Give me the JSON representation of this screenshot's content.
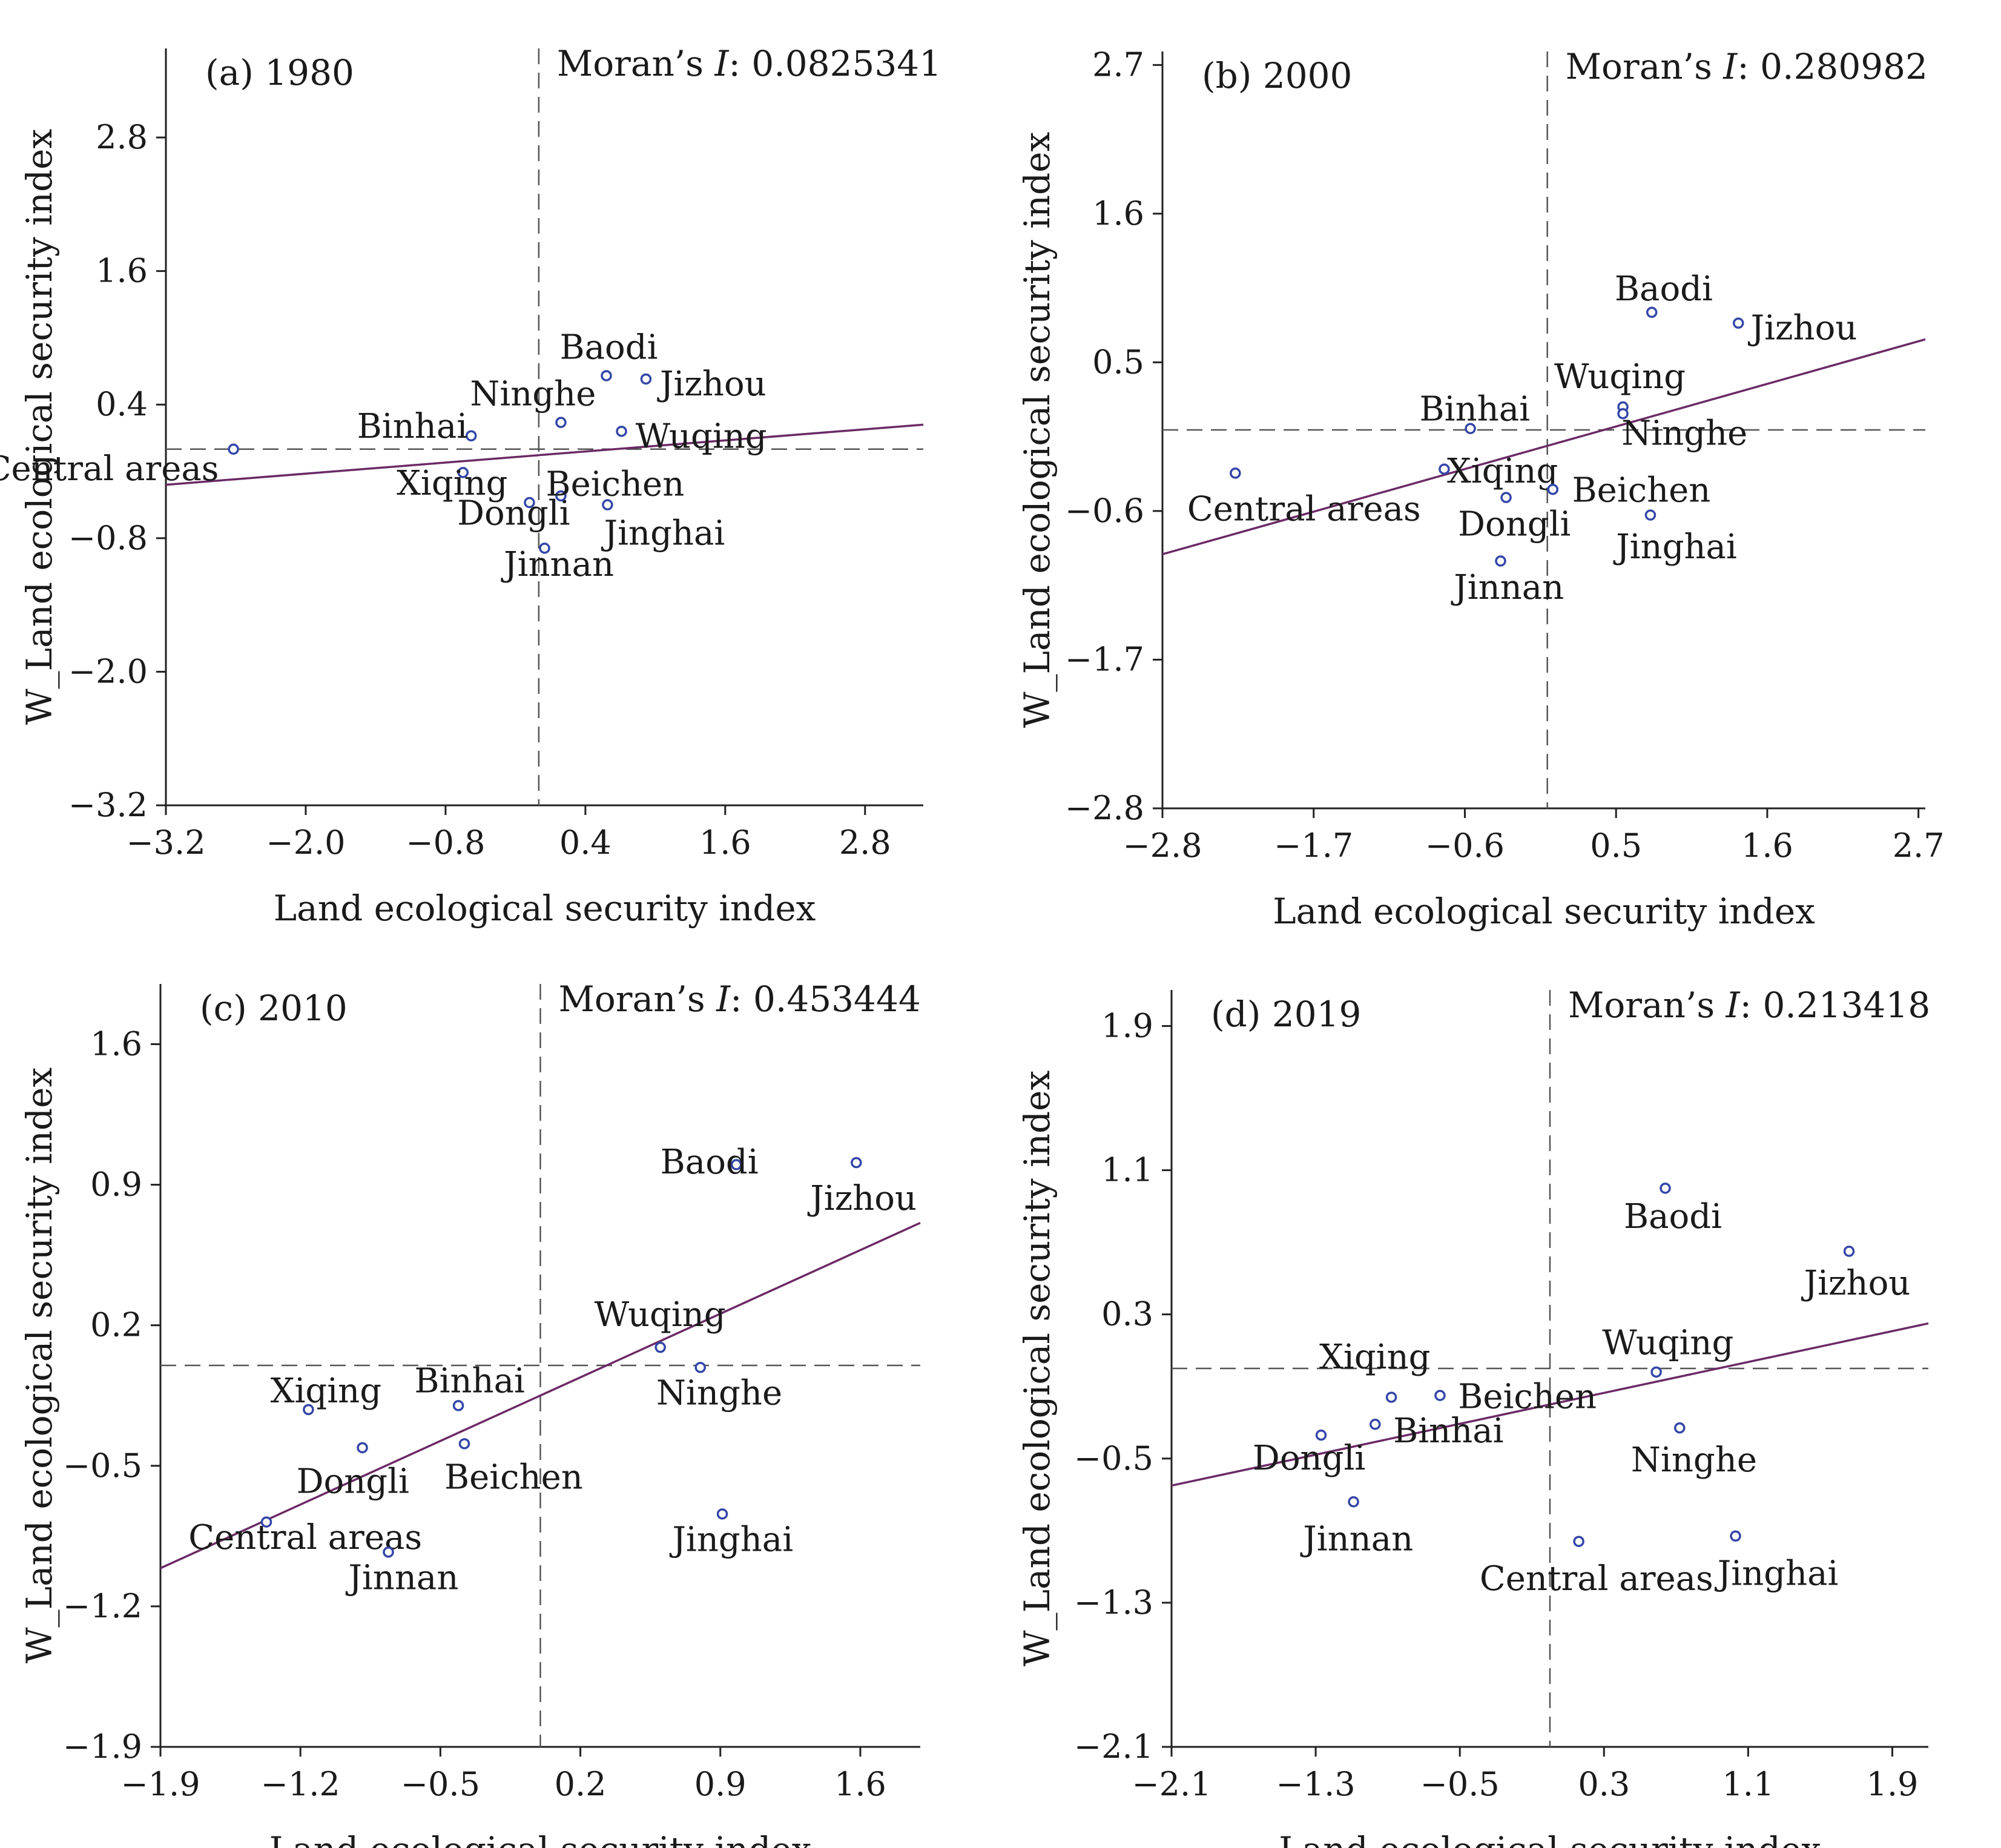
{
  "figure": {
    "colors": {
      "points": "#3346a8",
      "regression_line": "#6b2a66",
      "reference_lines": "#555555",
      "axes": "#222222"
    }
  },
  "chart_data": [
    {
      "type": "scatter",
      "panel_label": "(a) 1980",
      "moran_prefix": "Moran’s ",
      "moran_symbol": "I",
      "moran_value": ": 0.0825341",
      "xlabel": "Land ecological security index",
      "ylabel": "W_Land ecological security index",
      "xlim": [
        -3.2,
        3.3
      ],
      "ylim": [
        -3.2,
        3.6
      ],
      "xticks": [
        "−3.2",
        "−2.0",
        "−0.8",
        "0.4",
        "1.6",
        "2.8"
      ],
      "xtick_values": [
        -3.2,
        -2.0,
        -0.8,
        0.4,
        1.6,
        2.8
      ],
      "yticks": [
        "2.8",
        "1.6",
        "0.4",
        "−0.8",
        "−2.0",
        "−3.2"
      ],
      "ytick_values": [
        2.8,
        1.6,
        0.4,
        -0.8,
        -2.0,
        -3.2
      ],
      "fit_line": {
        "x": [
          -3.2,
          3.3
        ],
        "y": [
          -0.32,
          0.22
        ]
      },
      "reference_lines": {
        "x": 0.0,
        "y": 0.0
      },
      "points": [
        {
          "name": "Central areas",
          "x": -2.62,
          "y": 0.0,
          "label_dx": -2.13,
          "label_dy": -0.18
        },
        {
          "name": "Binhai",
          "x": -0.58,
          "y": 0.12,
          "label_dx": -0.98,
          "label_dy": 0.08
        },
        {
          "name": "Xiqing",
          "x": -0.65,
          "y": -0.21,
          "label_dx": -0.57,
          "label_dy": -0.1
        },
        {
          "name": "Dongli",
          "x": -0.08,
          "y": -0.48,
          "label_dx": -0.62,
          "label_dy": -0.1
        },
        {
          "name": "Jinnan",
          "x": 0.05,
          "y": -0.89,
          "label_dx": -0.35,
          "label_dy": -0.15
        },
        {
          "name": "Ninghe",
          "x": 0.19,
          "y": 0.24,
          "label_dx": -0.78,
          "label_dy": 0.25
        },
        {
          "name": "Baodi",
          "x": 0.58,
          "y": 0.66,
          "label_dx": -0.4,
          "label_dy": 0.25
        },
        {
          "name": "Jizhou",
          "x": 0.92,
          "y": 0.63,
          "label_dx": 0.12,
          "label_dy": -0.05
        },
        {
          "name": "Wuqing",
          "x": 0.71,
          "y": 0.16,
          "label_dx": 0.12,
          "label_dy": -0.05
        },
        {
          "name": "Beichen",
          "x": 0.19,
          "y": -0.42,
          "label_dx": -0.13,
          "label_dy": 0.1
        },
        {
          "name": "Jinghai",
          "x": 0.59,
          "y": -0.5,
          "label_dx": -0.03,
          "label_dy": -0.26
        }
      ]
    },
    {
      "type": "scatter",
      "panel_label": "(b) 2000",
      "moran_prefix": "Moran’s ",
      "moran_symbol": "I",
      "moran_value": ": 0.280982",
      "xlabel": "Land ecological security index",
      "ylabel": "W_Land ecological security index",
      "xlim": [
        -2.8,
        2.75
      ],
      "ylim": [
        -2.8,
        2.8
      ],
      "xticks": [
        "−2.8",
        "−1.7",
        "−0.6",
        "0.5",
        "1.6",
        "2.7"
      ],
      "xtick_values": [
        -2.8,
        -1.7,
        -0.6,
        0.5,
        1.6,
        2.7
      ],
      "yticks": [
        "2.7",
        "1.6",
        "0.5",
        "−0.6",
        "−1.7",
        "−2.8"
      ],
      "ytick_values": [
        2.7,
        1.6,
        0.5,
        -0.6,
        -1.7,
        -2.8
      ],
      "fit_line": {
        "x": [
          -2.8,
          2.75
        ],
        "y": [
          -0.92,
          0.67
        ]
      },
      "reference_lines": {
        "x": 0.0,
        "y": 0.0
      },
      "points": [
        {
          "name": "Central areas",
          "x": -2.27,
          "y": -0.32,
          "label_dx": -0.35,
          "label_dy": -0.27
        },
        {
          "name": "Binhai",
          "x": -0.56,
          "y": 0.01,
          "label_dx": -0.37,
          "label_dy": 0.14
        },
        {
          "name": "Xiqing",
          "x": -0.75,
          "y": -0.29,
          "label_dx": 0.02,
          "label_dy": -0.02
        },
        {
          "name": "Dongli",
          "x": -0.3,
          "y": -0.5,
          "label_dx": -0.35,
          "label_dy": -0.2
        },
        {
          "name": "Jinnan",
          "x": -0.34,
          "y": -0.97,
          "label_dx": -0.34,
          "label_dy": -0.2
        },
        {
          "name": "Wuqing",
          "x": 0.55,
          "y": 0.17,
          "label_dx": -0.5,
          "label_dy": 0.22
        },
        {
          "name": "Ninghe",
          "x": 0.55,
          "y": 0.12,
          "label_dx": -0.01,
          "label_dy": -0.15
        },
        {
          "name": "Beichen",
          "x": 0.04,
          "y": -0.44,
          "label_dx": 0.14,
          "label_dy": -0.01
        },
        {
          "name": "Jinghai",
          "x": 0.75,
          "y": -0.63,
          "label_dx": -0.25,
          "label_dy": -0.24
        },
        {
          "name": "Baodi",
          "x": 0.76,
          "y": 0.87,
          "label_dx": -0.27,
          "label_dy": 0.17
        },
        {
          "name": "Jizhou",
          "x": 1.39,
          "y": 0.79,
          "label_dx": 0.09,
          "label_dy": -0.04
        }
      ]
    },
    {
      "type": "scatter",
      "panel_label": "(c) 2010",
      "moran_prefix": "Moran’s ",
      "moran_symbol": "I",
      "moran_value": ": 0.453444",
      "xlabel": "Land ecological security index",
      "ylabel": "W_Land ecological security index",
      "xlim": [
        -1.9,
        1.9
      ],
      "ylim": [
        -1.9,
        1.9
      ],
      "xticks": [
        "−1.9",
        "−1.2",
        "−0.5",
        "0.2",
        "0.9",
        "1.6"
      ],
      "xtick_values": [
        -1.9,
        -1.2,
        -0.5,
        0.2,
        0.9,
        1.6
      ],
      "yticks": [
        "1.6",
        "0.9",
        "0.2",
        "−0.5",
        "−1.2",
        "−1.9"
      ],
      "ytick_values": [
        1.6,
        0.9,
        0.2,
        -0.5,
        -1.2,
        -1.9
      ],
      "fit_line": {
        "x": [
          -1.9,
          1.9
        ],
        "y": [
          -1.01,
          0.71
        ]
      },
      "reference_lines": {
        "x": 0.0,
        "y": 0.0
      },
      "points": [
        {
          "name": "Xiqing",
          "x": -1.16,
          "y": -0.22,
          "label_dx": -0.19,
          "label_dy": 0.09
        },
        {
          "name": "Dongli",
          "x": -0.89,
          "y": -0.41,
          "label_dx": -0.33,
          "label_dy": -0.17
        },
        {
          "name": "Central areas",
          "x": -1.37,
          "y": -0.78,
          "label_dx": -0.39,
          "label_dy": -0.08
        },
        {
          "name": "Jinnan",
          "x": -0.76,
          "y": -0.93,
          "label_dx": -0.2,
          "label_dy": -0.13
        },
        {
          "name": "Binhai",
          "x": -0.41,
          "y": -0.2,
          "label_dx": -0.22,
          "label_dy": 0.12
        },
        {
          "name": "Beichen",
          "x": -0.38,
          "y": -0.39,
          "label_dx": -0.1,
          "label_dy": -0.17
        },
        {
          "name": "Wuqing",
          "x": 0.6,
          "y": 0.09,
          "label_dx": -0.33,
          "label_dy": 0.16
        },
        {
          "name": "Ninghe",
          "x": 0.8,
          "y": -0.01,
          "label_dx": -0.22,
          "label_dy": -0.13
        },
        {
          "name": "Jinghai",
          "x": 0.91,
          "y": -0.74,
          "label_dx": -0.25,
          "label_dy": -0.13
        },
        {
          "name": "Baodi",
          "x": 0.98,
          "y": 1.0,
          "label_dx": -0.38,
          "label_dy": 0.01
        },
        {
          "name": "Jizhou",
          "x": 1.58,
          "y": 1.01,
          "label_dx": -0.23,
          "label_dy": -0.18
        }
      ]
    },
    {
      "type": "scatter",
      "panel_label": "(d) 2019",
      "moran_prefix": "Moran’s ",
      "moran_symbol": "I",
      "moran_value": ": 0.213418",
      "xlabel": "Land ecological security index",
      "ylabel": "W_Land ecological security index",
      "xlim": [
        -2.1,
        2.1
      ],
      "ylim": [
        -2.1,
        2.1
      ],
      "xticks": [
        "−2.1",
        "−1.3",
        "−0.5",
        "0.3",
        "1.1",
        "1.9"
      ],
      "xtick_values": [
        -2.1,
        -1.3,
        -0.5,
        0.3,
        1.1,
        1.9
      ],
      "yticks": [
        "1.9",
        "1.1",
        "0.3",
        "−0.5",
        "−1.3",
        "−2.1"
      ],
      "ytick_values": [
        1.9,
        1.1,
        0.3,
        -0.5,
        -1.3,
        -2.1
      ],
      "fit_line": {
        "x": [
          -2.1,
          2.1
        ],
        "y": [
          -0.65,
          0.25
        ]
      },
      "reference_lines": {
        "x": 0.0,
        "y": 0.0
      },
      "points": [
        {
          "name": "Xiqing",
          "x": -0.88,
          "y": -0.16,
          "label_dx": -0.4,
          "label_dy": 0.22
        },
        {
          "name": "Beichen",
          "x": -0.61,
          "y": -0.15,
          "label_dx": 0.1,
          "label_dy": -0.01
        },
        {
          "name": "Binhai",
          "x": -0.97,
          "y": -0.31,
          "label_dx": 0.1,
          "label_dy": -0.04
        },
        {
          "name": "Dongli",
          "x": -1.27,
          "y": -0.37,
          "label_dx": -0.38,
          "label_dy": -0.13
        },
        {
          "name": "Jinnan",
          "x": -1.09,
          "y": -0.74,
          "label_dx": -0.28,
          "label_dy": -0.21
        },
        {
          "name": "Central areas",
          "x": 0.16,
          "y": -0.96,
          "label_dx": -0.55,
          "label_dy": -0.21
        },
        {
          "name": "Wuqing",
          "x": 0.59,
          "y": -0.02,
          "label_dx": -0.3,
          "label_dy": 0.16
        },
        {
          "name": "Ninghe",
          "x": 0.72,
          "y": -0.33,
          "label_dx": -0.27,
          "label_dy": -0.18
        },
        {
          "name": "Jinghai",
          "x": 1.03,
          "y": -0.93,
          "label_dx": -0.1,
          "label_dy": -0.21
        },
        {
          "name": "Baodi",
          "x": 0.64,
          "y": 1.0,
          "label_dx": -0.23,
          "label_dy": -0.16
        },
        {
          "name": "Jizhou",
          "x": 1.66,
          "y": 0.65,
          "label_dx": -0.25,
          "label_dy": -0.18
        }
      ]
    }
  ]
}
